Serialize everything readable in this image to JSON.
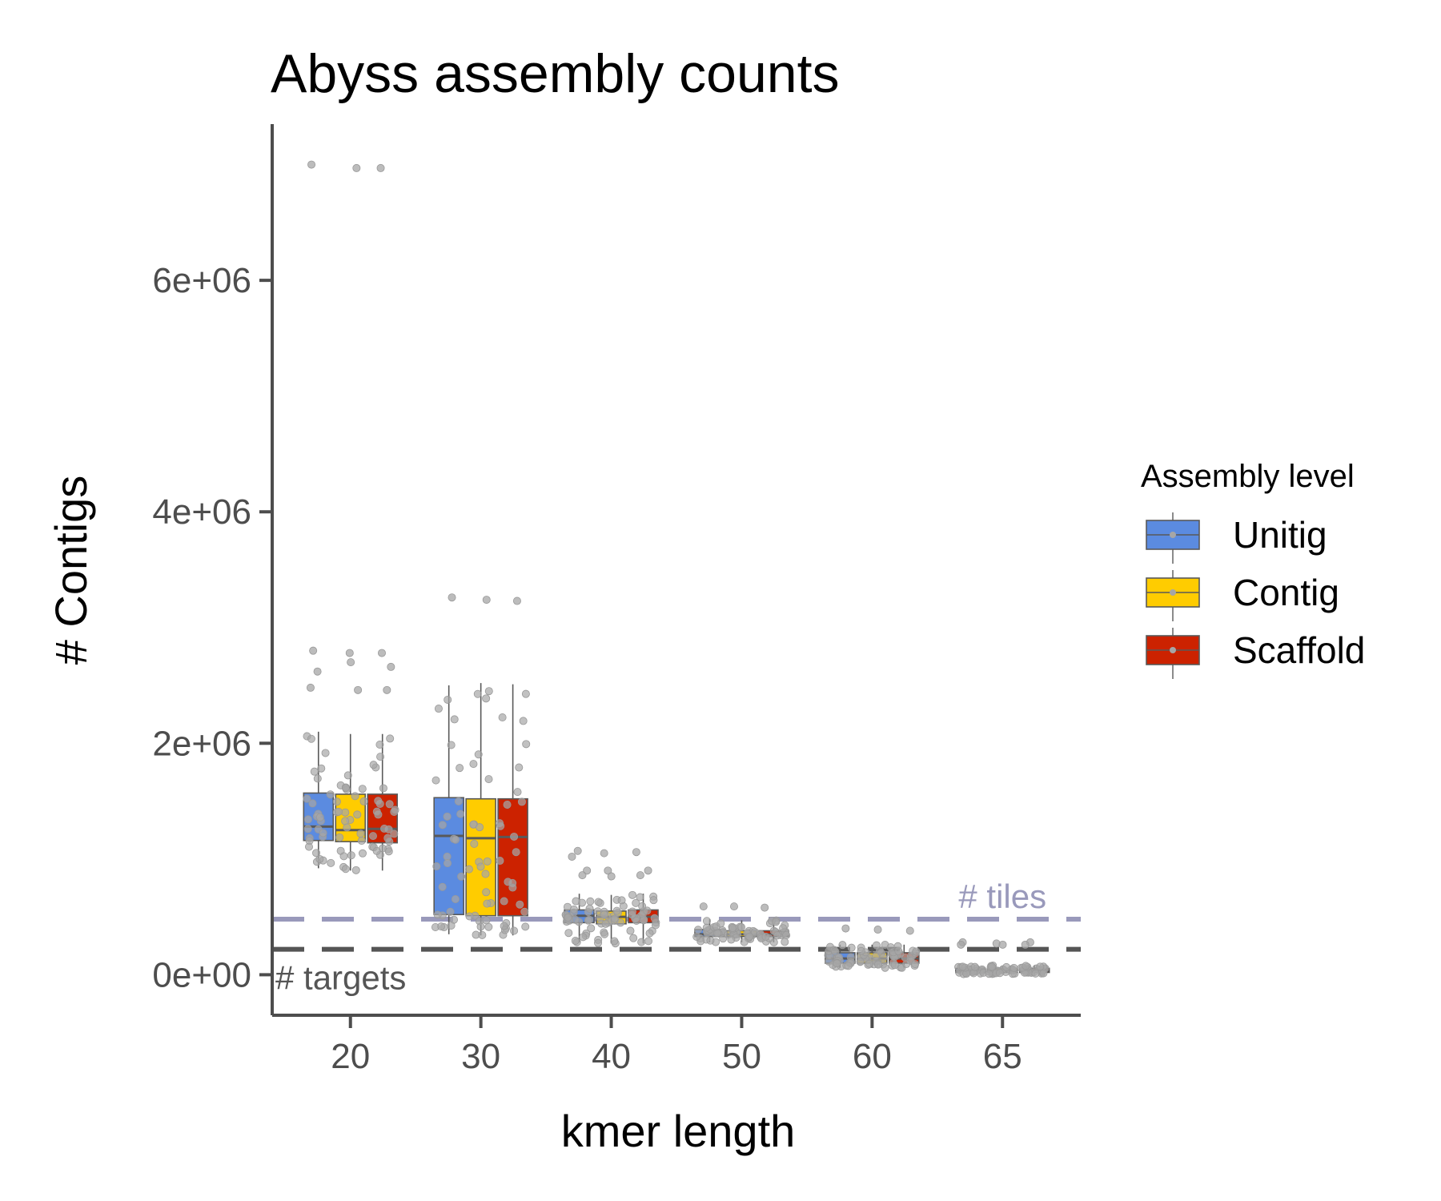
{
  "chart_data": {
    "type": "box",
    "title": "Abyss assembly counts",
    "xlabel": "kmer length",
    "ylabel": "# Contigs",
    "categories": [
      "20",
      "30",
      "40",
      "50",
      "60",
      "65"
    ],
    "y_ticks": [
      {
        "value": 0,
        "label": "0e+00"
      },
      {
        "value": 2000000,
        "label": "2e+06"
      },
      {
        "value": 4000000,
        "label": "4e+06"
      },
      {
        "value": 6000000,
        "label": "6e+06"
      }
    ],
    "ylim": [
      -350000,
      7350000
    ],
    "grid": false,
    "legend": {
      "title": "Assembly level",
      "position": "right",
      "items": [
        {
          "name": "Unitig",
          "color": "#5B8BE0"
        },
        {
          "name": "Contig",
          "color": "#FFCC00"
        },
        {
          "name": "Scaffold",
          "color": "#CC2200"
        }
      ]
    },
    "reference_lines": [
      {
        "label": "# tiles",
        "value": 480000,
        "color": "#9999BB",
        "label_category": "65"
      },
      {
        "label": "# targets",
        "value": 220000,
        "color": "#555555",
        "label_category": "20"
      }
    ],
    "series": [
      {
        "name": "Unitig",
        "boxes": [
          {
            "category": "20",
            "whisker_low": 920000,
            "q1": 1160000,
            "median": 1280000,
            "q3": 1570000,
            "whisker_high": 2100000,
            "outliers": [
              7000000,
              2800000,
              2620000,
              2480000
            ]
          },
          {
            "category": "30",
            "whisker_low": 350000,
            "q1": 520000,
            "median": 1200000,
            "q3": 1530000,
            "whisker_high": 2500000,
            "outliers": [
              3260000
            ]
          },
          {
            "category": "40",
            "whisker_low": 280000,
            "q1": 450000,
            "median": 510000,
            "q3": 560000,
            "whisker_high": 700000,
            "outliers": [
              1070000,
              1020000,
              900000,
              860000
            ]
          },
          {
            "category": "50",
            "whisker_low": 280000,
            "q1": 330000,
            "median": 350000,
            "q3": 390000,
            "whisker_high": 480000,
            "outliers": [
              590000
            ]
          },
          {
            "category": "60",
            "whisker_low": 60000,
            "q1": 100000,
            "median": 140000,
            "q3": 190000,
            "whisker_high": 260000,
            "outliers": [
              400000
            ]
          },
          {
            "category": "65",
            "whisker_low": 5000,
            "q1": 20000,
            "median": 35000,
            "q3": 55000,
            "whisker_high": 80000,
            "outliers": [
              280000,
              260000
            ]
          }
        ]
      },
      {
        "name": "Contig",
        "boxes": [
          {
            "category": "20",
            "whisker_low": 900000,
            "q1": 1150000,
            "median": 1250000,
            "q3": 1560000,
            "whisker_high": 2080000,
            "outliers": [
              6970000,
              2780000,
              2700000,
              2460000
            ]
          },
          {
            "category": "30",
            "whisker_low": 340000,
            "q1": 510000,
            "median": 1180000,
            "q3": 1520000,
            "whisker_high": 2520000,
            "outliers": [
              3240000
            ]
          },
          {
            "category": "40",
            "whisker_low": 270000,
            "q1": 440000,
            "median": 500000,
            "q3": 550000,
            "whisker_high": 690000,
            "outliers": [
              1050000,
              900000,
              850000
            ]
          },
          {
            "category": "50",
            "whisker_low": 280000,
            "q1": 330000,
            "median": 350000,
            "q3": 380000,
            "whisker_high": 470000,
            "outliers": [
              590000
            ]
          },
          {
            "category": "60",
            "whisker_low": 60000,
            "q1": 100000,
            "median": 140000,
            "q3": 190000,
            "whisker_high": 260000,
            "outliers": [
              390000
            ]
          },
          {
            "category": "65",
            "whisker_low": 5000,
            "q1": 20000,
            "median": 35000,
            "q3": 55000,
            "whisker_high": 80000,
            "outliers": [
              270000,
              260000
            ]
          }
        ]
      },
      {
        "name": "Scaffold",
        "boxes": [
          {
            "category": "20",
            "whisker_low": 900000,
            "q1": 1140000,
            "median": 1260000,
            "q3": 1560000,
            "whisker_high": 2080000,
            "outliers": [
              6970000,
              2780000,
              2660000,
              2460000
            ]
          },
          {
            "category": "30",
            "whisker_low": 340000,
            "q1": 510000,
            "median": 1190000,
            "q3": 1520000,
            "whisker_high": 2510000,
            "outliers": [
              3230000
            ]
          },
          {
            "category": "40",
            "whisker_low": 270000,
            "q1": 450000,
            "median": 500000,
            "q3": 560000,
            "whisker_high": 700000,
            "outliers": [
              1060000,
              900000,
              860000
            ]
          },
          {
            "category": "50",
            "whisker_low": 280000,
            "q1": 330000,
            "median": 350000,
            "q3": 380000,
            "whisker_high": 470000,
            "outliers": [
              580000
            ]
          },
          {
            "category": "60",
            "whisker_low": 60000,
            "q1": 100000,
            "median": 140000,
            "q3": 190000,
            "whisker_high": 260000,
            "outliers": [
              380000
            ]
          },
          {
            "category": "65",
            "whisker_low": 5000,
            "q1": 20000,
            "median": 35000,
            "q3": 55000,
            "whisker_high": 80000,
            "outliers": [
              280000,
              260000
            ]
          }
        ]
      }
    ]
  }
}
